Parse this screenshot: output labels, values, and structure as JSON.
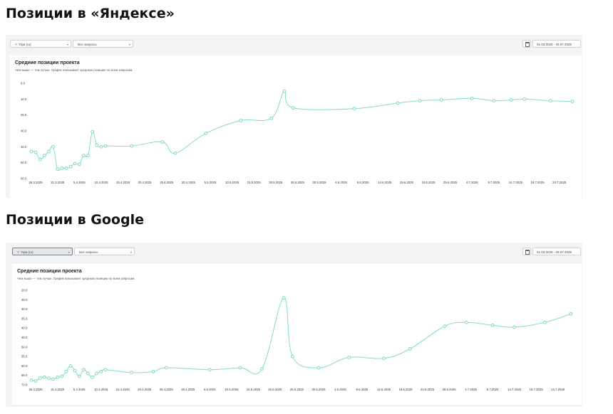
{
  "sections": [
    {
      "title": "Позиции в «Яндексе»",
      "region": "Уфа (ru)",
      "query_filter": "Все запросы",
      "date_range": "01.03.2025 - 29.07.2025",
      "card_title": "Средние позиции проекта",
      "card_subtitle": "Чем выше — тем лучше. График показывает среднюю позицию по всем запросам."
    },
    {
      "title": "Позиции в Google",
      "region": "Уфа (ru)",
      "query_filter": "Все запросы",
      "date_range": "01.03.2025 - 29.07.2025",
      "card_title": "Средние позиции проекта",
      "card_subtitle": "Чем выше — тем лучше. График показывает среднюю позицию по всем запросам."
    }
  ],
  "icons": {
    "region_marker": "map-pin-icon",
    "dropdown": "chevron-down-icon",
    "calendar": "calendar-icon"
  },
  "colors": {
    "line": "#86dcc0",
    "marker": "#7fd8bb",
    "panel_background": "#f2f3f5",
    "region_marker": "#e06060"
  },
  "chart_data": [
    {
      "type": "line",
      "title": "Средние позиции проекта",
      "xlabel": "",
      "ylabel": "",
      "y_inverted": true,
      "ylim": [
        0,
        60
      ],
      "y_ticks": [
        "0.0",
        "10.0",
        "20.0",
        "30.0",
        "40.0",
        "50.0",
        "60.0"
      ],
      "x_ticks": [
        "26.3.2025",
        "31.3.2025",
        "5.4.2025",
        "10.4.2025",
        "15.4.2025",
        "20.4.2025",
        "25.4.2025",
        "30.4.2025",
        "5.5.2025",
        "10.5.2025",
        "15.5.2025",
        "20.5.2025",
        "25.5.2025",
        "30.5.2025",
        "4.6.2025",
        "9.6.2025",
        "14.6.2025",
        "19.6.2025",
        "24.6.2025",
        "29.6.2025",
        "4.7.2025",
        "9.7.2025",
        "14.7.2025",
        "19.7.2025",
        "24.7.2025"
      ],
      "x_range": [
        "25.3.2025",
        "27.7.2025"
      ],
      "grid": false,
      "series": [
        {
          "x": [
            "25.3.2025",
            "26.3.2025",
            "27.3.2025",
            "28.3.2025",
            "29.3.2025",
            "30.3.2025",
            "31.3.2025",
            "1.4.2025",
            "2.4.2025",
            "3.4.2025",
            "4.4.2025",
            "5.4.2025",
            "6.4.2025",
            "7.4.2025",
            "8.4.2025",
            "9.4.2025",
            "10.4.2025",
            "11.4.2025",
            "17.4.2025",
            "24.4.2025",
            "27.4.2025",
            "4.5.2025",
            "12.5.2025",
            "19.5.2025",
            "22.5.2025",
            "24.5.2025",
            "7.6.2025",
            "17.6.2025",
            "22.6.2025",
            "27.6.2025",
            "4.7.2025",
            "9.7.2025",
            "13.7.2025",
            "16.7.2025",
            "22.7.2025",
            "27.7.2025"
          ],
          "values": [
            43,
            43.5,
            48,
            45.5,
            43,
            40,
            54,
            53.5,
            53.5,
            52.5,
            50.5,
            51,
            45.5,
            45.5,
            30.5,
            39,
            40,
            39.5,
            39.5,
            37,
            44,
            31.5,
            23.5,
            22,
            5,
            15.5,
            16,
            12.5,
            11,
            10.5,
            9.5,
            11,
            10.5,
            10,
            11,
            11.5
          ]
        }
      ]
    },
    {
      "type": "line",
      "title": "Средние позиции проекта",
      "xlabel": "",
      "ylabel": "",
      "y_inverted": true,
      "ylim": [
        20,
        70
      ],
      "y_ticks": [
        "20.0",
        "25.0",
        "30.0",
        "35.0",
        "40.0",
        "45.0",
        "50.0",
        "55.0",
        "60.0",
        "65.0",
        "70.0"
      ],
      "x_ticks": [
        "26.3.2025",
        "31.3.2025",
        "5.4.2025",
        "10.4.2025",
        "15.4.2025",
        "20.4.2025",
        "25.4.2025",
        "30.4.2025",
        "5.5.2025",
        "10.5.2025",
        "15.5.2025",
        "20.5.2025",
        "25.5.2025",
        "30.5.2025",
        "4.6.2025",
        "9.6.2025",
        "14.6.2025",
        "19.6.2025",
        "24.6.2025",
        "29.6.2025",
        "4.7.2025",
        "9.7.2025",
        "14.7.2025",
        "19.7.2025",
        "24.7.2025"
      ],
      "x_range": [
        "25.3.2025",
        "27.7.2025"
      ],
      "grid": false,
      "series": [
        {
          "x": [
            "25.3.2025",
            "26.3.2025",
            "27.3.2025",
            "28.3.2025",
            "29.3.2025",
            "30.3.2025",
            "31.3.2025",
            "1.4.2025",
            "2.4.2025",
            "3.4.2025",
            "4.4.2025",
            "5.4.2025",
            "6.4.2025",
            "7.4.2025",
            "8.4.2025",
            "9.4.2025",
            "10.4.2025",
            "11.4.2025",
            "17.4.2025",
            "22.4.2025",
            "25.4.2025",
            "5.5.2025",
            "12.5.2025",
            "17.5.2025",
            "22.5.2025",
            "24.5.2025",
            "30.5.2025",
            "6.6.2025",
            "14.6.2025",
            "20.6.2025",
            "28.6.2025",
            "3.7.2025",
            "9.7.2025",
            "14.7.2025",
            "21.7.2025",
            "27.7.2025"
          ],
          "values": [
            67.5,
            68,
            66.5,
            66,
            66.5,
            67,
            66,
            65.5,
            63,
            60,
            62.5,
            65.5,
            62,
            64,
            66,
            64,
            63,
            62,
            63.5,
            63,
            61,
            62,
            61,
            61.5,
            24,
            55,
            61,
            55.5,
            56,
            51,
            39,
            37,
            38.5,
            39.5,
            37,
            32.5
          ]
        }
      ]
    }
  ]
}
